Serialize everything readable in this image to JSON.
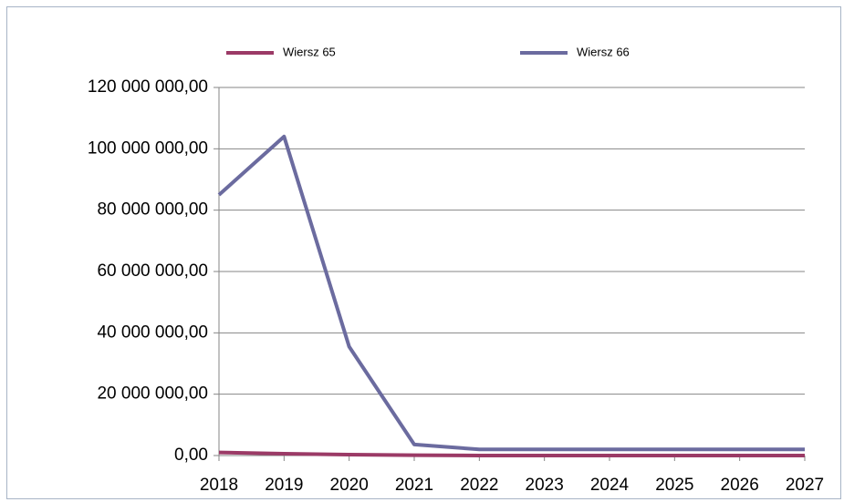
{
  "chart_data": {
    "type": "line",
    "categories": [
      "2018",
      "2019",
      "2020",
      "2021",
      "2022",
      "2023",
      "2024",
      "2025",
      "2026",
      "2027"
    ],
    "series": [
      {
        "name": "Wiersz 65",
        "color": "#9b3a66",
        "values": [
          1000000,
          600000,
          300000,
          100000,
          0,
          0,
          0,
          0,
          0,
          0
        ]
      },
      {
        "name": "Wiersz 66",
        "color": "#6b6b9f",
        "values": [
          85000000,
          104000000,
          35500000,
          3600000,
          2000000,
          2000000,
          2000000,
          2000000,
          2000000,
          2000000
        ]
      }
    ],
    "ylim": [
      0,
      120000000
    ],
    "yticks": [
      {
        "value": 0,
        "label": "0,00"
      },
      {
        "value": 20000000,
        "label": "20 000 000,00"
      },
      {
        "value": 40000000,
        "label": "40 000 000,00"
      },
      {
        "value": 60000000,
        "label": "60 000 000,00"
      },
      {
        "value": 80000000,
        "label": "80 000 000,00"
      },
      {
        "value": 100000000,
        "label": "100 000 000,00"
      },
      {
        "value": 120000000,
        "label": "120 000 000,00"
      }
    ],
    "grid": true,
    "legend": "top"
  }
}
